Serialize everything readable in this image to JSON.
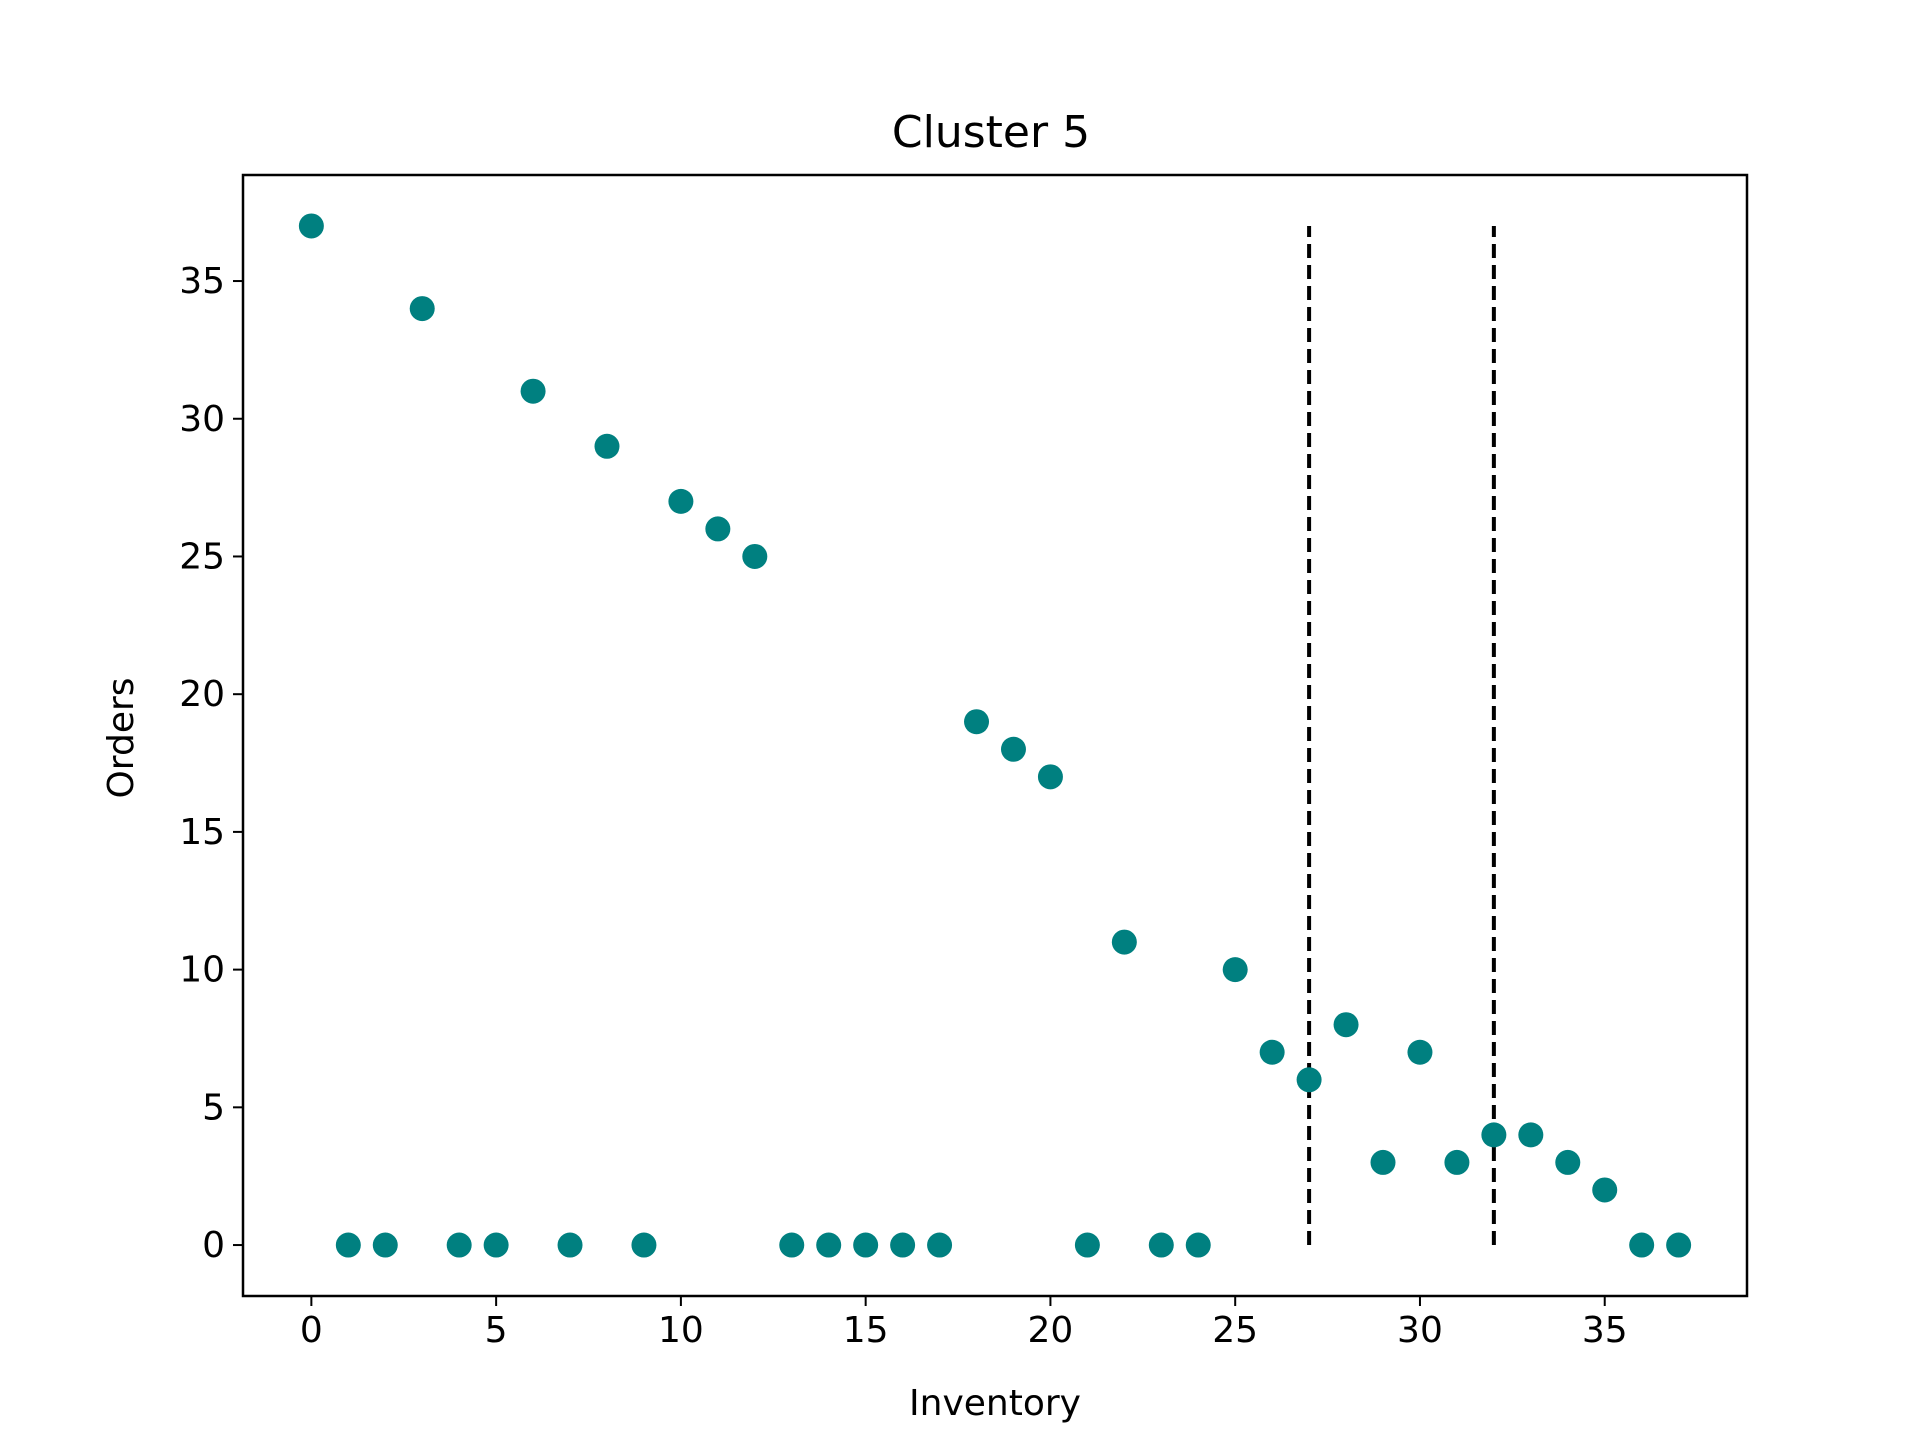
{
  "chart_data": {
    "type": "scatter",
    "title": "Cluster 5",
    "xlabel": "Inventory",
    "ylabel": "Orders",
    "xlim": [
      -1.85,
      38.85
    ],
    "ylim": [
      -1.85,
      38.85
    ],
    "xticks": [
      0,
      5,
      10,
      15,
      20,
      25,
      30,
      35
    ],
    "yticks": [
      0,
      5,
      10,
      15,
      20,
      25,
      30,
      35
    ],
    "grid": false,
    "marker_color": "#008080",
    "points": [
      {
        "x": 0,
        "y": 37
      },
      {
        "x": 1,
        "y": 0
      },
      {
        "x": 2,
        "y": 0
      },
      {
        "x": 3,
        "y": 34
      },
      {
        "x": 4,
        "y": 0
      },
      {
        "x": 5,
        "y": 0
      },
      {
        "x": 6,
        "y": 31
      },
      {
        "x": 7,
        "y": 0
      },
      {
        "x": 8,
        "y": 29
      },
      {
        "x": 9,
        "y": 0
      },
      {
        "x": 10,
        "y": 27
      },
      {
        "x": 11,
        "y": 26
      },
      {
        "x": 12,
        "y": 25
      },
      {
        "x": 13,
        "y": 0
      },
      {
        "x": 14,
        "y": 0
      },
      {
        "x": 15,
        "y": 0
      },
      {
        "x": 16,
        "y": 0
      },
      {
        "x": 17,
        "y": 0
      },
      {
        "x": 18,
        "y": 19
      },
      {
        "x": 19,
        "y": 18
      },
      {
        "x": 20,
        "y": 17
      },
      {
        "x": 21,
        "y": 0
      },
      {
        "x": 22,
        "y": 11
      },
      {
        "x": 23,
        "y": 0
      },
      {
        "x": 24,
        "y": 0
      },
      {
        "x": 25,
        "y": 10
      },
      {
        "x": 26,
        "y": 7
      },
      {
        "x": 27,
        "y": 6
      },
      {
        "x": 28,
        "y": 8
      },
      {
        "x": 29,
        "y": 3
      },
      {
        "x": 30,
        "y": 7
      },
      {
        "x": 31,
        "y": 3
      },
      {
        "x": 32,
        "y": 4
      },
      {
        "x": 33,
        "y": 4
      },
      {
        "x": 34,
        "y": 3
      },
      {
        "x": 35,
        "y": 2
      },
      {
        "x": 36,
        "y": 0
      },
      {
        "x": 37,
        "y": 0
      }
    ],
    "vlines": [
      {
        "x": 27,
        "ymin": 0,
        "ymax": 37,
        "style": "dashed",
        "color": "#000000"
      },
      {
        "x": 32,
        "ymin": 0,
        "ymax": 37,
        "style": "dashed",
        "color": "#000000"
      }
    ]
  }
}
